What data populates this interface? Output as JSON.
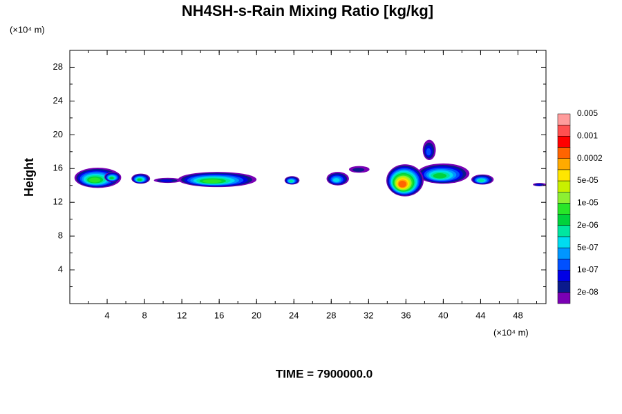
{
  "chart_data": {
    "type": "contour",
    "title": "NH4SH-s-Rain Mixing Ratio [kg/kg]",
    "y_unit": "(×10⁴ m)",
    "x_unit": "(×10⁴ m)",
    "ylabel": "Height",
    "annotation": "TIME = 7900000.0",
    "xlim": [
      0,
      51
    ],
    "ylim": [
      0,
      30
    ],
    "xticks": [
      4,
      8,
      12,
      16,
      20,
      24,
      28,
      32,
      36,
      40,
      44,
      48
    ],
    "yticks": [
      4,
      8,
      12,
      16,
      20,
      24,
      28
    ],
    "colorbar": {
      "colors": [
        "#7a00b4",
        "#0a1a8c",
        "#0000e6",
        "#0050ff",
        "#0096ff",
        "#00dcf0",
        "#00e6a0",
        "#00d23c",
        "#28e628",
        "#8cf032",
        "#c8f000",
        "#ffe600",
        "#ffaa00",
        "#ff6400",
        "#ff0000",
        "#ff5050",
        "#ff9c9c"
      ],
      "labels": [
        "2e-08",
        "1e-07",
        "5e-07",
        "2e-06",
        "1e-05",
        "5e-05",
        "0.0002",
        "0.001",
        "0.005"
      ]
    },
    "blobs": [
      {
        "x": 3.0,
        "y": 14.9,
        "rx": 2.5,
        "ry": 1.2,
        "level": 8
      },
      {
        "x": 4.6,
        "y": 15.0,
        "rx": 0.9,
        "ry": 0.6,
        "level": 7
      },
      {
        "x": 7.6,
        "y": 14.8,
        "rx": 1.0,
        "ry": 0.6,
        "level": 7
      },
      {
        "x": 10.5,
        "y": 14.6,
        "rx": 1.5,
        "ry": 0.3,
        "level": 2
      },
      {
        "x": 15.8,
        "y": 14.7,
        "rx": 4.2,
        "ry": 0.9,
        "level": 8
      },
      {
        "x": 23.8,
        "y": 14.6,
        "rx": 0.8,
        "ry": 0.5,
        "level": 6
      },
      {
        "x": 28.7,
        "y": 14.8,
        "rx": 1.2,
        "ry": 0.8,
        "level": 5
      },
      {
        "x": 31.0,
        "y": 15.9,
        "rx": 1.1,
        "ry": 0.4,
        "level": 1
      },
      {
        "x": 40.0,
        "y": 15.4,
        "rx": 2.8,
        "ry": 1.2,
        "level": 7
      },
      {
        "x": 35.9,
        "y": 14.6,
        "rx": 2.0,
        "ry": 1.9,
        "level": 13
      },
      {
        "x": 38.5,
        "y": 18.2,
        "rx": 0.7,
        "ry": 1.2,
        "level": 3
      },
      {
        "x": 44.2,
        "y": 14.7,
        "rx": 1.2,
        "ry": 0.6,
        "level": 6
      },
      {
        "x": 50.3,
        "y": 14.1,
        "rx": 0.7,
        "ry": 0.2,
        "level": 2
      }
    ]
  }
}
